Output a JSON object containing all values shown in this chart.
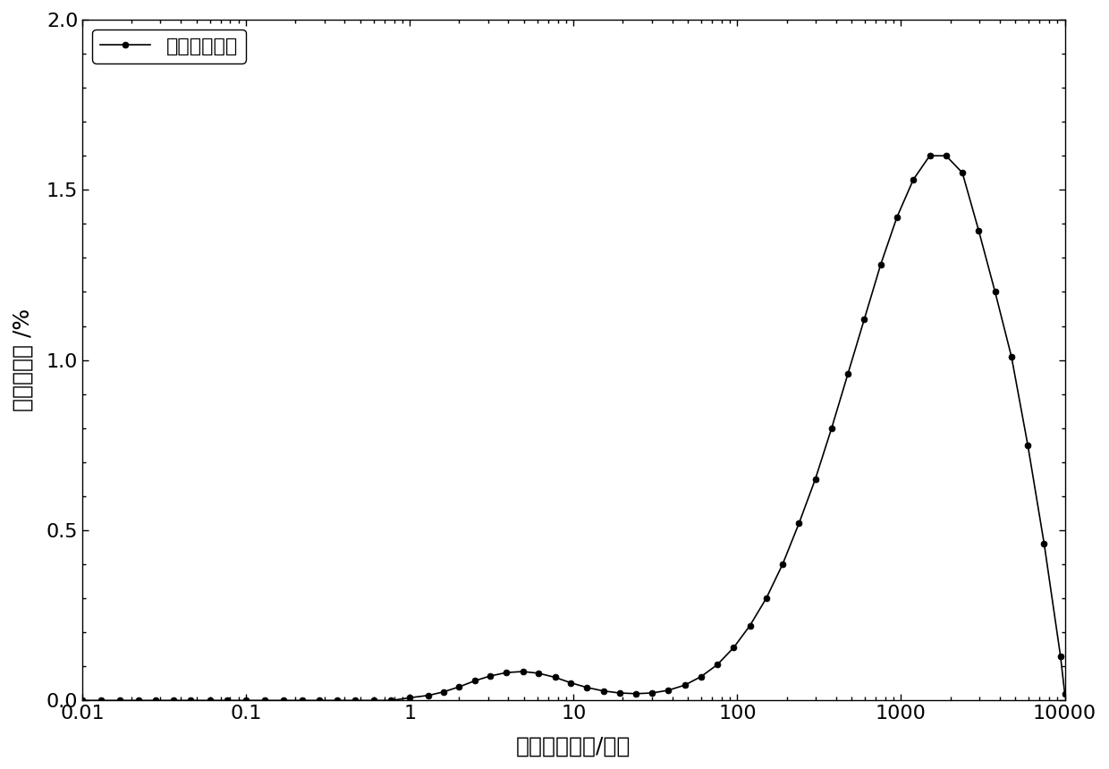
{
  "xlabel": "横向弛豫时间/毫秒",
  "ylabel": "孔隙度分量 /%",
  "legend_label": "完全含水状态",
  "ylim": [
    0,
    2.0
  ],
  "yticks": [
    0.0,
    0.5,
    1.0,
    1.5,
    2.0
  ],
  "xtick_labels": [
    "0.01",
    "0.1",
    "1",
    "10",
    "100",
    "1000",
    "10000"
  ],
  "xtick_values": [
    0.01,
    0.1,
    1,
    10,
    100,
    1000,
    10000
  ],
  "line_color": "#000000",
  "marker": "o",
  "marker_size": 5,
  "marker_color": "#000000",
  "line_width": 1.2,
  "x": [
    0.01,
    0.013,
    0.017,
    0.022,
    0.028,
    0.036,
    0.046,
    0.06,
    0.077,
    0.1,
    0.13,
    0.17,
    0.22,
    0.28,
    0.36,
    0.46,
    0.6,
    0.77,
    1.0,
    1.3,
    1.6,
    2.0,
    2.5,
    3.1,
    3.9,
    4.9,
    6.1,
    7.7,
    9.6,
    12.1,
    15.2,
    19.1,
    24.0,
    30.2,
    37.9,
    47.7,
    60.0,
    75.4,
    94.9,
    119.4,
    150.2,
    189.0,
    237.9,
    299.4,
    376.7,
    474.0,
    596.5,
    750.5,
    944.5,
    1188.8,
    1496.2,
    1882.8,
    2369.2,
    2981.1,
    3752.7,
    4723.7,
    5945.0,
    7483.3,
    9416.5,
    10000.0
  ],
  "y": [
    0.0,
    0.0,
    0.0,
    0.0,
    0.0,
    0.0,
    0.0,
    0.0,
    0.0,
    0.0,
    0.0,
    0.0,
    0.0,
    0.0,
    0.0,
    0.0,
    0.0,
    0.0,
    0.008,
    0.015,
    0.025,
    0.04,
    0.058,
    0.072,
    0.082,
    0.085,
    0.08,
    0.068,
    0.052,
    0.038,
    0.028,
    0.022,
    0.02,
    0.022,
    0.03,
    0.045,
    0.07,
    0.105,
    0.155,
    0.22,
    0.3,
    0.4,
    0.52,
    0.65,
    0.8,
    0.96,
    1.12,
    1.28,
    1.42,
    1.53,
    1.6,
    1.6,
    1.55,
    1.38,
    1.2,
    1.01,
    0.75,
    0.46,
    0.13,
    0.02
  ]
}
